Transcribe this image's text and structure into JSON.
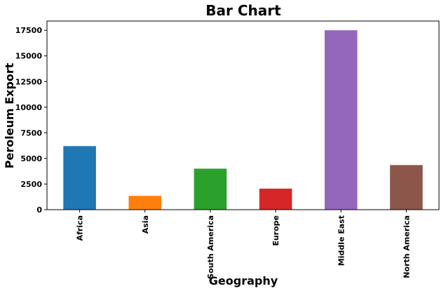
{
  "chart_data": {
    "type": "bar",
    "title": "Bar Chart",
    "xlabel": "Geography",
    "ylabel": "Peroleum Export",
    "categories": [
      "Africa",
      "Asia",
      "South America",
      "Europe",
      "Middle East",
      "North America"
    ],
    "values": [
      6200,
      1350,
      4000,
      2050,
      17500,
      4350
    ],
    "colors": [
      "#1f77b4",
      "#ff7f0e",
      "#2ca02c",
      "#d62728",
      "#9467bd",
      "#8c564b"
    ],
    "ylim": [
      0,
      18400
    ],
    "yticks": [
      0,
      2500,
      5000,
      7500,
      10000,
      12500,
      15000,
      17500
    ],
    "ytick_labels": [
      "0",
      "2500",
      "5000",
      "7500",
      "10000",
      "12500",
      "15000",
      "17500"
    ],
    "grid": false,
    "legend": "none"
  }
}
